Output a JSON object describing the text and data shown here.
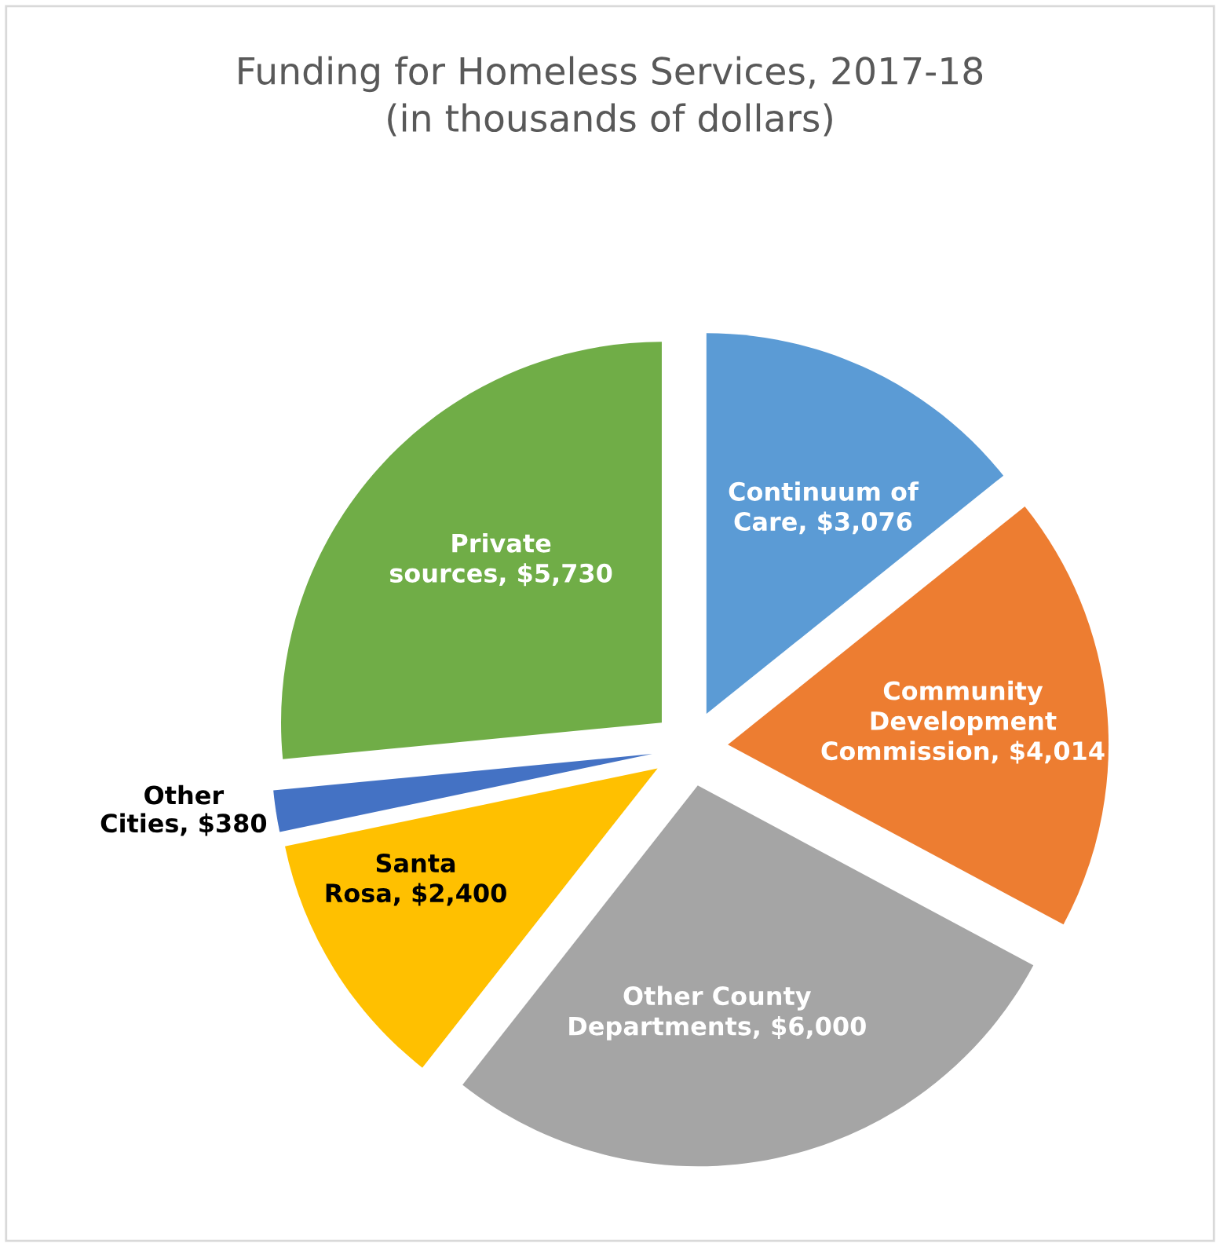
{
  "chart_data": {
    "type": "pie",
    "title": "Funding for Homeless Services, 2017-18\n(in thousands of dollars)",
    "categories": [
      "Continuum of\nCare",
      "Community\nDevelopment\nCommission",
      "Other County\nDepartments",
      "Santa\nRosa",
      "Other\nCities",
      "Private\nsources"
    ],
    "values": [
      3076,
      4014,
      6000,
      2400,
      380,
      5730
    ],
    "value_labels": [
      "$3,076",
      "$4,014",
      "$6,000",
      "$2,400",
      "$380",
      "$5,730"
    ],
    "colors": [
      "#5b9bd5",
      "#ed7d31",
      "#a5a5a5",
      "#ffc000",
      "#4472c4",
      "#70ad47"
    ],
    "legend": false
  }
}
